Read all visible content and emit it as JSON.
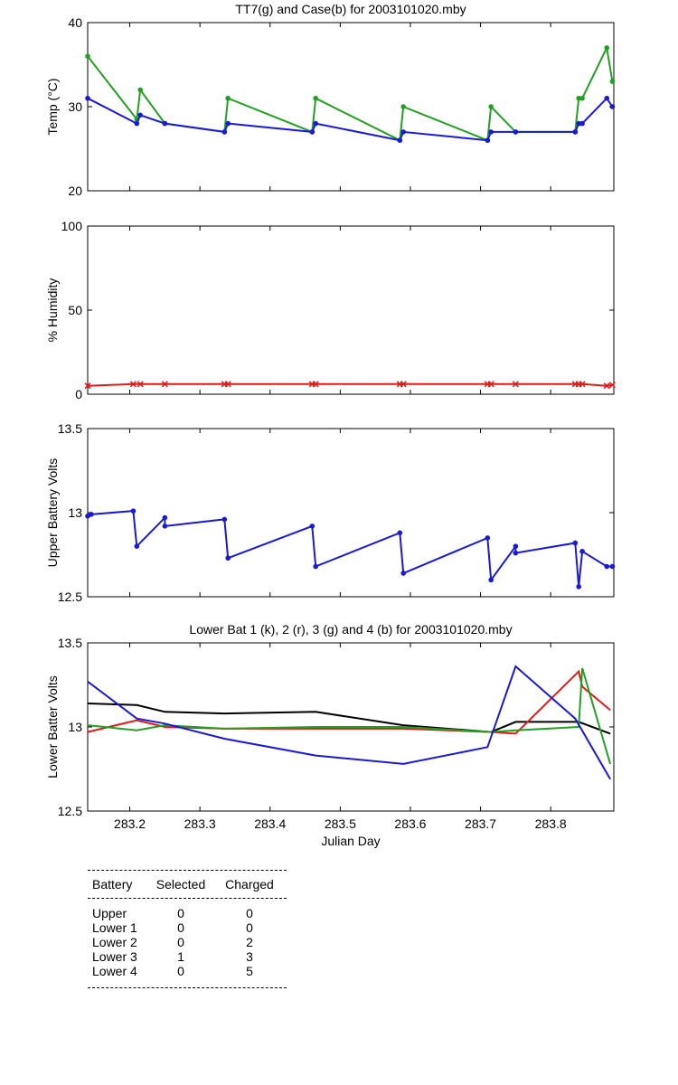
{
  "chart_data": [
    {
      "type": "line",
      "title": "TT7(g) and Case(b) for 2003101020.mby",
      "xlabel": "",
      "ylabel": "Temp  (°C)",
      "xlim": [
        283.14,
        283.89
      ],
      "ylim": [
        20,
        40
      ],
      "yticks": [
        "20",
        "30",
        "40"
      ],
      "series": [
        {
          "name": "TT7",
          "color": "#22a022",
          "marker": "dot",
          "x": [
            283.14,
            283.21,
            283.215,
            283.25,
            283.335,
            283.34,
            283.46,
            283.465,
            283.585,
            283.59,
            283.71,
            283.715,
            283.75,
            283.835,
            283.84,
            283.845,
            283.88,
            283.888
          ],
          "y": [
            36,
            28.5,
            32,
            28,
            27,
            31,
            27,
            31,
            26,
            30,
            26,
            30,
            27,
            27,
            31,
            31,
            37,
            33
          ]
        },
        {
          "name": "Case",
          "color": "#1a1ad2",
          "marker": "dot",
          "x": [
            283.14,
            283.21,
            283.215,
            283.25,
            283.335,
            283.34,
            283.46,
            283.465,
            283.585,
            283.59,
            283.71,
            283.715,
            283.75,
            283.835,
            283.84,
            283.845,
            283.88,
            283.888
          ],
          "y": [
            31,
            28,
            29,
            28,
            27,
            28,
            27,
            28,
            26,
            27,
            26,
            27,
            27,
            27,
            28,
            28,
            31,
            30
          ]
        }
      ]
    },
    {
      "type": "line",
      "title": "",
      "xlabel": "",
      "ylabel": "% Humidity",
      "xlim": [
        283.14,
        283.89
      ],
      "ylim": [
        0,
        100
      ],
      "yticks": [
        "0",
        "50",
        "100"
      ],
      "series": [
        {
          "name": "Humidity",
          "color": "#e01a1a",
          "marker": "x",
          "x": [
            283.14,
            283.205,
            283.215,
            283.25,
            283.335,
            283.34,
            283.46,
            283.465,
            283.585,
            283.59,
            283.71,
            283.715,
            283.75,
            283.835,
            283.84,
            283.845,
            283.88,
            283.888
          ],
          "y": [
            5,
            6,
            6,
            6,
            6,
            6,
            6,
            6,
            6,
            6,
            6,
            6,
            6,
            6,
            6,
            6,
            5,
            5.5
          ]
        }
      ]
    },
    {
      "type": "line",
      "title": "",
      "xlabel": "",
      "ylabel": "Upper Battery Volts",
      "xlim": [
        283.14,
        283.89
      ],
      "ylim": [
        12.5,
        13.5
      ],
      "yticks": [
        "12.5",
        "13",
        "13.5"
      ],
      "series": [
        {
          "name": "Upper",
          "color": "#1a1ad2",
          "marker": "dot",
          "x": [
            283.14,
            283.145,
            283.205,
            283.21,
            283.25,
            283.25,
            283.335,
            283.34,
            283.46,
            283.465,
            283.585,
            283.59,
            283.71,
            283.715,
            283.75,
            283.75,
            283.835,
            283.84,
            283.845,
            283.88,
            283.888
          ],
          "y": [
            12.98,
            12.99,
            13.01,
            12.8,
            12.97,
            12.92,
            12.96,
            12.73,
            12.92,
            12.68,
            12.88,
            12.64,
            12.85,
            12.6,
            12.8,
            12.76,
            12.82,
            12.56,
            12.77,
            12.68,
            12.68
          ]
        }
      ]
    },
    {
      "type": "line",
      "title": "Lower Bat 1 (k), 2 (r), 3 (g) and 4 (b) for 2003101020.mby",
      "xlabel": "Julian Day",
      "ylabel": "Lower Batter Volts",
      "xlim": [
        283.14,
        283.89
      ],
      "ylim": [
        12.5,
        13.5
      ],
      "yticks": [
        "12.5",
        "13",
        "13.5"
      ],
      "xticks": [
        "283.2",
        "283.3",
        "283.4",
        "283.5",
        "283.6",
        "283.7",
        "283.8"
      ],
      "series": [
        {
          "name": "Lower 1",
          "color": "#000000",
          "x": [
            283.14,
            283.21,
            283.25,
            283.335,
            283.465,
            283.59,
            283.715,
            283.75,
            283.84,
            283.885
          ],
          "y": [
            13.14,
            13.13,
            13.09,
            13.08,
            13.09,
            13.01,
            12.97,
            13.03,
            13.03,
            12.96
          ]
        },
        {
          "name": "Lower 2",
          "color": "#e01a1a",
          "x": [
            283.14,
            283.21,
            283.25,
            283.335,
            283.465,
            283.59,
            283.715,
            283.75,
            283.84,
            283.845,
            283.885
          ],
          "y": [
            12.97,
            13.04,
            13.0,
            12.99,
            12.99,
            12.99,
            12.97,
            12.96,
            13.33,
            13.24,
            13.1
          ]
        },
        {
          "name": "Lower 3",
          "color": "#22a022",
          "x": [
            283.14,
            283.21,
            283.25,
            283.335,
            283.465,
            283.59,
            283.715,
            283.75,
            283.84,
            283.845,
            283.885
          ],
          "y": [
            13.01,
            12.98,
            13.01,
            12.99,
            13.0,
            13.0,
            12.97,
            12.98,
            13.0,
            13.35,
            12.78
          ]
        },
        {
          "name": "Lower 4",
          "color": "#1a1ad2",
          "x": [
            283.14,
            283.21,
            283.25,
            283.335,
            283.465,
            283.59,
            283.71,
            283.75,
            283.835,
            283.885
          ],
          "y": [
            13.27,
            13.05,
            13.02,
            12.93,
            12.83,
            12.78,
            12.88,
            13.36,
            13.05,
            12.69
          ]
        }
      ]
    }
  ],
  "battery_table": {
    "headers": [
      "Battery",
      "Selected",
      "Charged"
    ],
    "rows": [
      [
        "Upper",
        "0",
        "0"
      ],
      [
        "Lower 1",
        "0",
        "0"
      ],
      [
        "Lower 2",
        "0",
        "2"
      ],
      [
        "Lower 3",
        "1",
        "3"
      ],
      [
        "Lower 4",
        "0",
        "5"
      ]
    ]
  }
}
